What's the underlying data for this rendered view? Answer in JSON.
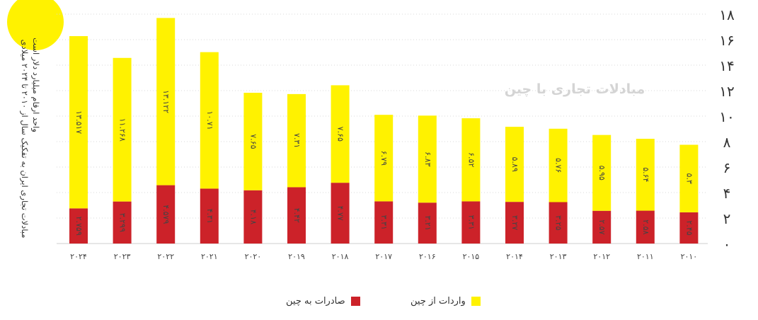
{
  "chart_data": {
    "type": "bar",
    "stacked": true,
    "title": "مبادلات تجاری با چین",
    "side_title_1": "مبادلات تجاری ایران به تفکیک سال از ۲۰۱۰ تا ۲۰۲۴ میلادی",
    "side_title_2": "واحد ارقام میلیارد دلار است",
    "categories": [
      "۲۰۲۴",
      "۲۰۲۳",
      "۲۰۲۲",
      "۲۰۲۱",
      "۲۰۲۰",
      "۲۰۱۹",
      "۲۰۱۸",
      "۲۰۱۷",
      "۲۰۱۶",
      "۲۰۱۵",
      "۲۰۱۴",
      "۲۰۱۳",
      "۲۰۱۲",
      "۲۰۱۱",
      "۲۰۱۰"
    ],
    "series": [
      {
        "name": "صادرات به چین",
        "color": "#cc2229",
        "values": [
          2.759,
          3.299,
          4.579,
          4.31,
          4.18,
          4.42,
          4.77,
          3.31,
          3.21,
          3.31,
          3.27,
          3.25,
          2.57,
          2.58,
          2.45
        ],
        "labels": [
          "۲.۷۵۹",
          "۳.۲۹۹",
          "۴.۵۷۹",
          "۴.۳۱",
          "۴.۱۸",
          "۴.۴۲",
          "۴.۷۷",
          "۳.۳۱",
          "۳.۲۱",
          "۳.۳۱",
          "۳.۲۷",
          "۳.۲۵",
          "۲.۵۷",
          "۲.۵۸",
          "۲.۴۵"
        ]
      },
      {
        "name": "واردات از چین",
        "color": "#fff200",
        "values": [
          13.517,
          11.268,
          13.122,
          10.71,
          7.65,
          7.31,
          7.65,
          6.79,
          6.83,
          6.52,
          5.89,
          5.76,
          5.95,
          5.64,
          5.3
        ],
        "labels": [
          "۱۳.۵۱۷",
          "۱۱.۲۶۸",
          "۱۳.۱۲۲",
          "۱۰.۷۱",
          "۷.۶۵",
          "۷.۳۱",
          "۷.۶۵",
          "۶.۷۹",
          "۶.۸۳",
          "۶.۵۲",
          "۵.۸۹",
          "۵.۷۶",
          "۵.۹۵",
          "۵.۶۴",
          "۵.۳"
        ]
      }
    ],
    "ylim": [
      0,
      18
    ],
    "yticks": [
      "۰",
      "۲",
      "۴",
      "۶",
      "۸",
      "۱۰",
      "۱۲",
      "۱۴",
      "۱۶",
      "۱۸"
    ],
    "y_axis_position": "right",
    "grid": "horizontal dashed",
    "legend_position": "bottom"
  },
  "colors": {
    "badge": "#fff200"
  }
}
